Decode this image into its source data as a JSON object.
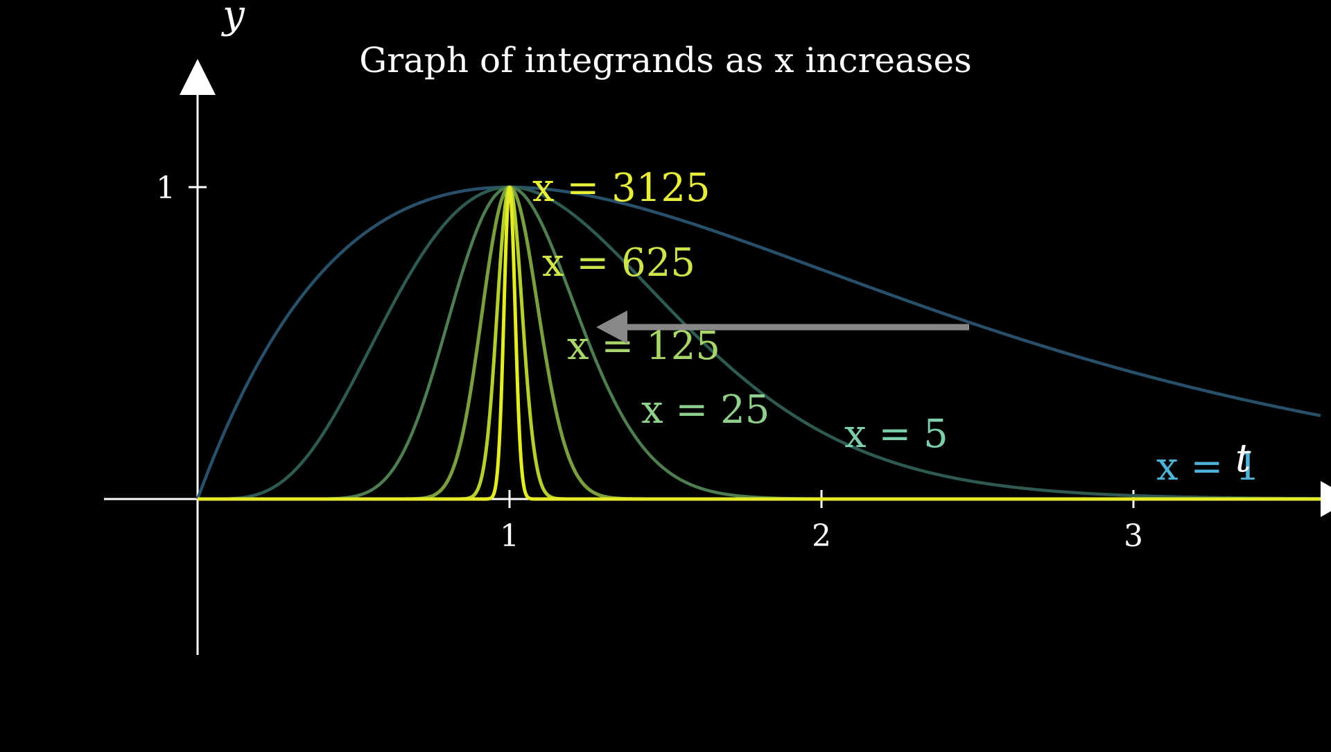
{
  "chart_data": {
    "type": "line",
    "title": "Graph of integrands as x increases",
    "xlabel": "t",
    "ylabel": "y",
    "xlim": [
      -0.3,
      3.6
    ],
    "ylim": [
      -0.5,
      1.3
    ],
    "xticks": [
      "1",
      "2",
      "3"
    ],
    "yticks": [
      "1"
    ],
    "grid": false,
    "function": "(t·e^(1−t))^x",
    "series": [
      {
        "name": "x = 1",
        "x_exponent": 1,
        "color": "#29506b",
        "label_color": "#4fb3d9"
      },
      {
        "name": "x = 5",
        "x_exponent": 5,
        "color": "#2f5a52",
        "label_color": "#7ccfaa"
      },
      {
        "name": "x = 25",
        "x_exponent": 25,
        "color": "#4e7d52",
        "label_color": "#8fd08c"
      },
      {
        "name": "x = 125",
        "x_exponent": 125,
        "color": "#7a9e40",
        "label_color": "#a9d66a"
      },
      {
        "name": "x = 625",
        "x_exponent": 625,
        "color": "#b6cf30",
        "label_color": "#cfe44a"
      },
      {
        "name": "x = 3125",
        "x_exponent": 3125,
        "color": "#e4ec26",
        "label_color": "#e7ef3a"
      }
    ],
    "annotation": {
      "type": "arrow",
      "direction": "left",
      "color": "#888888"
    }
  }
}
